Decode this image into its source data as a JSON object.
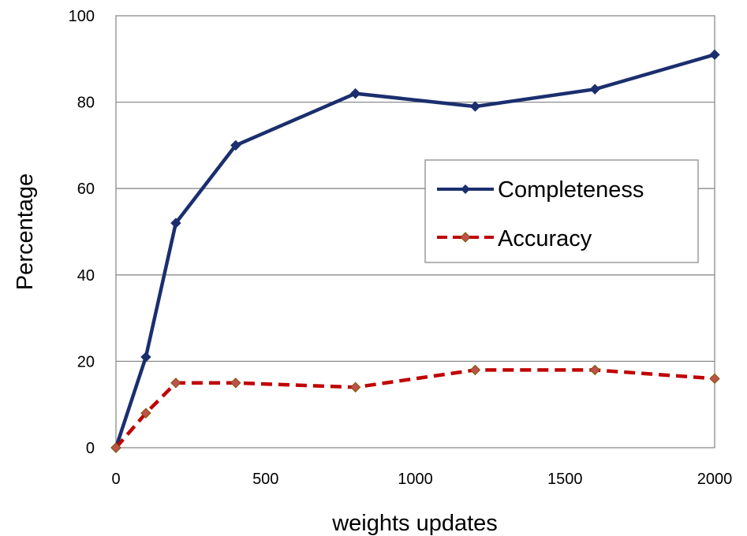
{
  "chart_data": {
    "type": "line",
    "title": "",
    "xlabel": "weights updates",
    "ylabel": "Percentage",
    "xlim": [
      0,
      2000
    ],
    "ylim": [
      0,
      100
    ],
    "xticks": [
      0,
      500,
      1000,
      1500,
      2000
    ],
    "yticks": [
      0,
      20,
      40,
      60,
      80,
      100
    ],
    "grid": "horizontal",
    "legend_position": "right",
    "x": [
      0,
      100,
      200,
      400,
      800,
      1200,
      1600,
      2000
    ],
    "series": [
      {
        "name": "Completeness",
        "values": [
          0,
          21,
          52,
          70,
          82,
          79,
          83,
          91
        ],
        "color": "#1b2f6e",
        "style": "solid",
        "marker": "diamond"
      },
      {
        "name": "Accuracy",
        "values": [
          0,
          8,
          15,
          15,
          14,
          18,
          18,
          16
        ],
        "color": "#c00000",
        "style": "dashed",
        "marker": "diamond"
      }
    ]
  }
}
